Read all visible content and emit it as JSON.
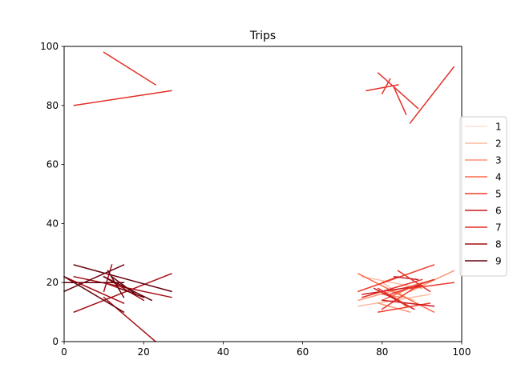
{
  "chart_data": {
    "type": "line",
    "title": "Trips",
    "xlabel": "",
    "ylabel": "",
    "xlim": [
      0,
      100
    ],
    "ylim": [
      0,
      100
    ],
    "xticks": [
      0,
      20,
      40,
      60,
      80,
      100
    ],
    "yticks": [
      0,
      20,
      40,
      60,
      80,
      100
    ],
    "grid": false,
    "legend_placement": "right",
    "series": [
      {
        "name": "1",
        "color": "#fee0d2",
        "segments": []
      },
      {
        "name": "2",
        "color": "#fcbba1",
        "segments": [
          [
            [
              75,
              90
            ],
            [
              22,
              18
            ]
          ],
          [
            [
              92,
              74
            ],
            [
              16,
              12
            ]
          ],
          [
            [
              80,
              86
            ],
            [
              20,
              15
            ]
          ],
          [
            [
              88,
              82
            ],
            [
              14,
              17
            ]
          ]
        ]
      },
      {
        "name": "3",
        "color": "#fc9272",
        "segments": [
          [
            [
              93,
              74
            ],
            [
              21,
              14
            ]
          ],
          [
            [
              85,
              80
            ],
            [
              15,
              16
            ]
          ],
          [
            [
              98,
              87
            ],
            [
              24,
              17
            ]
          ],
          [
            [
              79,
              87
            ],
            [
              13,
              10
            ]
          ]
        ]
      },
      {
        "name": "4",
        "color": "#fb6a4a",
        "segments": [
          [
            [
              93,
              74
            ],
            [
              10,
              23
            ]
          ],
          [
            [
              90,
              80
            ],
            [
              20,
              14
            ]
          ],
          [
            [
              86,
              83
            ],
            [
              12,
              15
            ]
          ]
        ]
      },
      {
        "name": "5",
        "color": "#ef3b2c",
        "segments": [
          [
            [
              93,
              74
            ],
            [
              26,
              17
            ]
          ],
          [
            [
              84,
              80
            ],
            [
              22,
              20
            ]
          ],
          [
            [
              92,
              79
            ],
            [
              13,
              10
            ]
          ],
          [
            [
              80,
              89
            ],
            [
              11,
              19
            ]
          ],
          [
            [
              98,
              87
            ],
            [
              20,
              18
            ]
          ]
        ]
      },
      {
        "name": "6",
        "color": "#cb181d",
        "segments": [
          [
            [
              75,
              90
            ],
            [
              16,
              19
            ]
          ],
          [
            [
              89,
              83
            ],
            [
              21,
              22
            ]
          ],
          [
            [
              93,
              80
            ],
            [
              12,
              14
            ]
          ],
          [
            [
              78,
              88
            ],
            [
              18,
              11
            ]
          ]
        ]
      },
      {
        "name": "7",
        "color": "#e32f27",
        "segments": [
          [
            [
              2.5,
              27
            ],
            [
              80,
              85
            ]
          ],
          [
            [
              10,
              23
            ],
            [
              98,
              87
            ]
          ],
          [
            [
              75,
              90
            ],
            [
              15,
              21
            ]
          ],
          [
            [
              93,
              82
            ],
            [
              21,
              16
            ]
          ],
          [
            [
              88,
              79
            ],
            [
              11,
              18
            ]
          ],
          [
            [
              92,
              84
            ],
            [
              17,
              24
            ]
          ],
          [
            [
              76,
              84
            ],
            [
              85,
              87
            ]
          ],
          [
            [
              82,
              80
            ],
            [
              89,
              84
            ]
          ],
          [
            [
              79,
              89
            ],
            [
              91,
              79
            ]
          ],
          [
            [
              98,
              87
            ],
            [
              93,
              74
            ]
          ],
          [
            [
              86,
              83
            ],
            [
              77,
              86
            ]
          ]
        ]
      },
      {
        "name": "8",
        "color": "#a50f15",
        "segments": [
          [
            [
              2.5,
              27
            ],
            [
              10,
              23
            ]
          ],
          [
            [
              2.5,
              27
            ],
            [
              22,
              15
            ]
          ],
          [
            [
              10,
              23
            ],
            [
              15,
              0
            ]
          ],
          [
            [
              10,
              14
            ],
            [
              20,
              18
            ]
          ],
          [
            [
              12,
              10
            ],
            [
              26,
              17
            ]
          ],
          [
            [
              15,
              0
            ],
            [
              13,
              22
            ]
          ],
          [
            [
              10,
              20
            ],
            [
              22,
              14
            ]
          ]
        ]
      },
      {
        "name": "9",
        "color": "#67000d",
        "segments": [
          [
            [
              2.5,
              27
            ],
            [
              26,
              17
            ]
          ],
          [
            [
              15,
              0
            ],
            [
              26,
              17
            ]
          ],
          [
            [
              10,
              22
            ],
            [
              22,
              14
            ]
          ],
          [
            [
              15,
              0
            ],
            [
              10,
              22
            ]
          ],
          [
            [
              12,
              18
            ],
            [
              22,
              16
            ]
          ],
          [
            [
              14,
              20
            ],
            [
              18,
              15
            ]
          ],
          [
            [
              11,
              15
            ],
            [
              24,
              15
            ]
          ],
          [
            [
              15,
              0
            ],
            [
              20,
              20
            ]
          ]
        ]
      }
    ]
  }
}
